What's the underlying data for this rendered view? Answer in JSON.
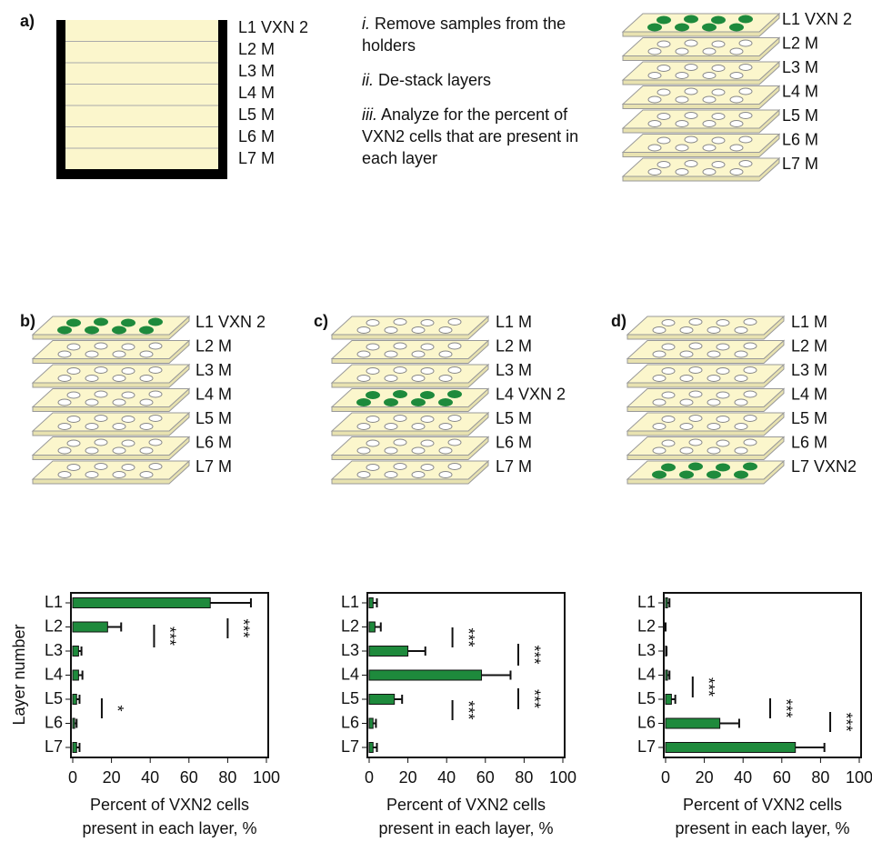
{
  "panel_a": {
    "label": "a)",
    "holder_layers": [
      "L1 VXN 2",
      "L2 M",
      "L3 M",
      "L4 M",
      "L5 M",
      "L6 M",
      "L7 M"
    ],
    "steps": [
      {
        "num": "i.",
        "text": "Remove samples from the holders"
      },
      {
        "num": "ii.",
        "text": "De-stack layers"
      },
      {
        "num": "iii.",
        "text": "Analyze for the percent of VXN2 cells that are present in each layer"
      }
    ],
    "stack_layers": [
      "L1 VXN 2",
      "L2 M",
      "L3 M",
      "L4 M",
      "L5 M",
      "L6 M",
      "L7 M"
    ]
  },
  "panels": [
    {
      "label": "b)",
      "layers": [
        "L1 VXN 2",
        "L2 M",
        "L3 M",
        "L4 M",
        "L5 M",
        "L6 M",
        "L7 M"
      ]
    },
    {
      "label": "c)",
      "layers": [
        "L1 M",
        "L2 M",
        "L3 M",
        "L4 VXN 2",
        "L5 M",
        "L6 M",
        "L7 M"
      ]
    },
    {
      "label": "d)",
      "layers": [
        "L1 M",
        "L2 M",
        "L3 M",
        "L4 M",
        "L5 M",
        "L6 M",
        "L7 VXN2"
      ]
    }
  ],
  "chart_data": [
    {
      "type": "bar",
      "orientation": "horizontal",
      "y_label": "Layer number",
      "x_label": "Percent of VXN2 cells present in each layer, %",
      "categories": [
        "L1",
        "L2",
        "L3",
        "L4",
        "L5",
        "L6",
        "L7"
      ],
      "series": [
        {
          "color": "#1e8a3c",
          "values": [
            71,
            18,
            3,
            3,
            2,
            1,
            2
          ],
          "errors": [
            21,
            7,
            1.5,
            2,
            1.5,
            1,
            1.5
          ]
        }
      ],
      "xlim": [
        0,
        100
      ],
      "xticks": [
        0,
        20,
        40,
        60,
        80,
        100
      ],
      "annotations": [
        "***",
        "***",
        "*"
      ]
    },
    {
      "type": "bar",
      "orientation": "horizontal",
      "x_label": "Percent of VXN2 cells present in each layer, %",
      "categories": [
        "L1",
        "L2",
        "L3",
        "L4",
        "L5",
        "L6",
        "L7"
      ],
      "series": [
        {
          "color": "#1e8a3c",
          "values": [
            2,
            3,
            20,
            58,
            13,
            2,
            2
          ],
          "errors": [
            2,
            3,
            9,
            15,
            4,
            1.5,
            2
          ]
        }
      ],
      "xlim": [
        0,
        100
      ],
      "xticks": [
        0,
        20,
        40,
        60,
        80,
        100
      ],
      "annotations": [
        "***",
        "***",
        "***",
        "***"
      ]
    },
    {
      "type": "bar",
      "orientation": "horizontal",
      "x_label": "Percent of VXN2 cells present in each layer, %",
      "categories": [
        "L1",
        "L2",
        "L3",
        "L4",
        "L5",
        "L6",
        "L7"
      ],
      "series": [
        {
          "color": "#1e8a3c",
          "values": [
            1,
            0,
            0.5,
            1,
            3,
            28,
            67
          ],
          "errors": [
            1,
            0,
            0,
            1,
            2,
            10,
            15
          ]
        }
      ],
      "xlim": [
        0,
        100
      ],
      "xticks": [
        0,
        20,
        40,
        60,
        80,
        100
      ],
      "annotations": [
        "***",
        "***",
        "***"
      ]
    }
  ]
}
